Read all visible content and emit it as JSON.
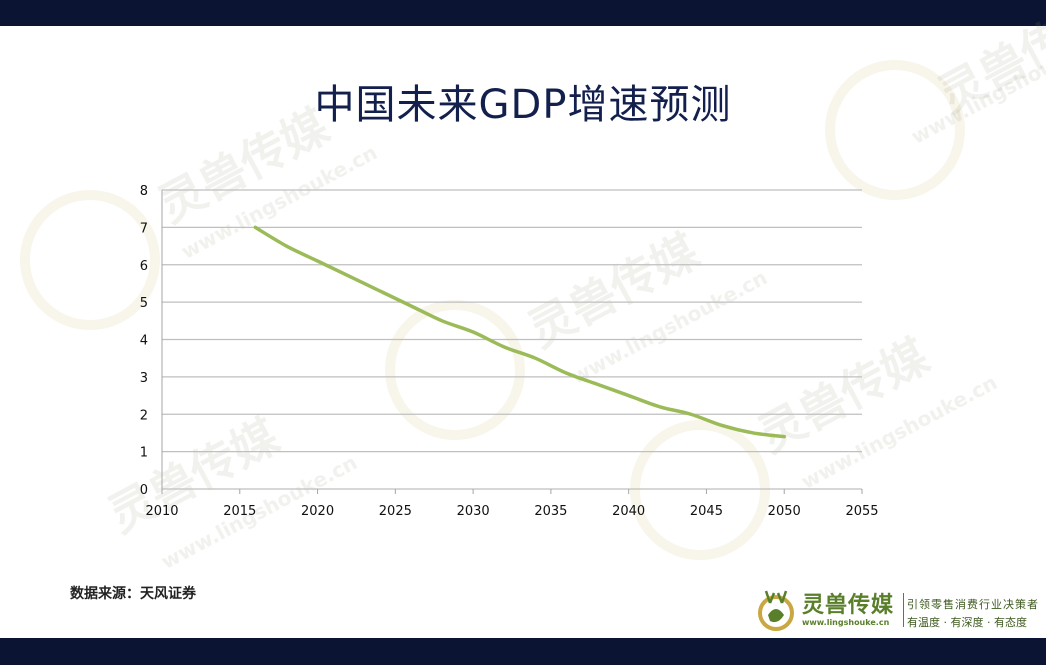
{
  "header": {
    "title": "中国未来GDP增速预测"
  },
  "source": {
    "text": "数据来源：天风证券"
  },
  "watermark": {
    "brand": "灵兽传媒",
    "url": "www.lingshouke.cn"
  },
  "logo": {
    "name": "灵兽传媒",
    "url": "www.lingshouke.cn",
    "slogan_line1": "引领零售消费行业决策者",
    "slogan_line2": "有温度 · 有深度 · 有态度"
  },
  "colors": {
    "band": "#0b1433",
    "title": "#13204d",
    "line": "#9bbb59",
    "grid": "#bfbfbf",
    "brand_green": "#5a7f2a"
  },
  "chart_data": {
    "type": "line",
    "title": "",
    "xlabel": "",
    "ylabel": "",
    "xlim": [
      2010,
      2055
    ],
    "ylim": [
      0,
      8
    ],
    "x_ticks": [
      2010,
      2015,
      2020,
      2025,
      2030,
      2035,
      2040,
      2045,
      2050,
      2055
    ],
    "y_ticks": [
      0,
      1,
      2,
      3,
      4,
      5,
      6,
      7,
      8
    ],
    "grid": true,
    "legend": "none",
    "series": [
      {
        "color": "#9bbb59",
        "x": [
          2016,
          2018,
          2020,
          2022,
          2024,
          2026,
          2028,
          2030,
          2032,
          2034,
          2036,
          2038,
          2040,
          2042,
          2044,
          2046,
          2048,
          2050
        ],
        "y": [
          7.0,
          6.5,
          6.1,
          5.7,
          5.3,
          4.9,
          4.5,
          4.2,
          3.8,
          3.5,
          3.1,
          2.8,
          2.5,
          2.2,
          2.0,
          1.7,
          1.5,
          1.4
        ]
      }
    ]
  }
}
